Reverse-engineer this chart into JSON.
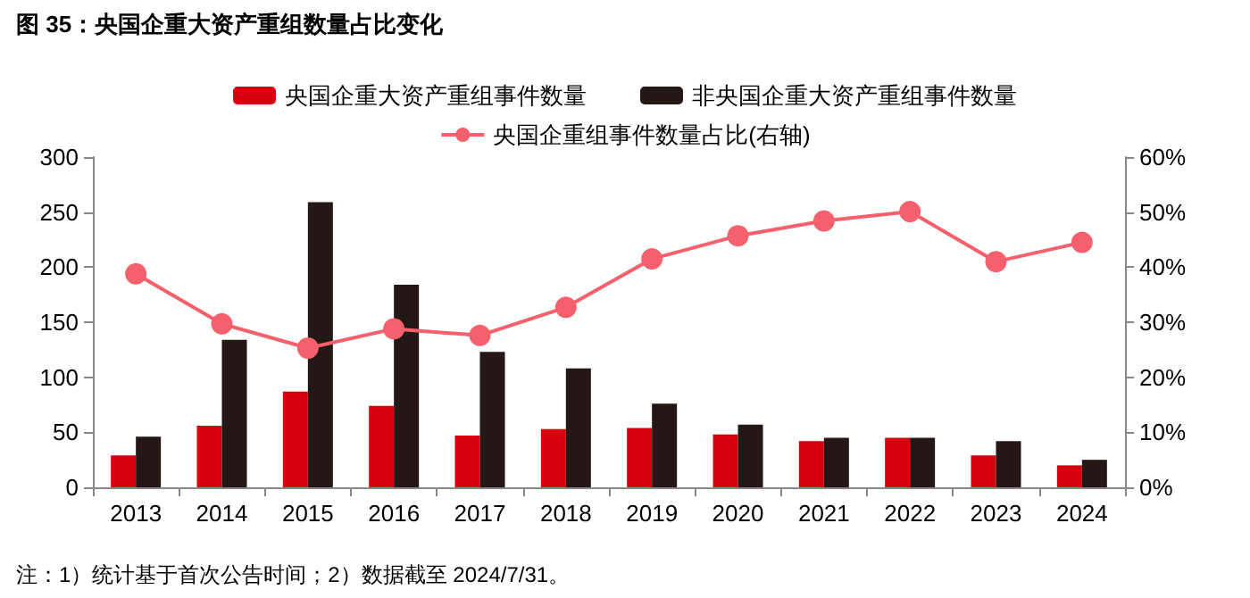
{
  "chart_data": {
    "type": "bar",
    "title": "图 35：央国企重大资产重组数量占比变化",
    "categories": [
      "2013",
      "2014",
      "2015",
      "2016",
      "2017",
      "2018",
      "2019",
      "2020",
      "2021",
      "2022",
      "2023",
      "2024"
    ],
    "series": [
      {
        "name": "央国企重大资产重组事件数量",
        "color": "#d7000f",
        "values": [
          29,
          56,
          87,
          74,
          47,
          53,
          54,
          48,
          42,
          45,
          29,
          20
        ]
      },
      {
        "name": "非央国企重大资产重组事件数量",
        "color": "#231815",
        "values": [
          46,
          134,
          259,
          184,
          123,
          108,
          76,
          57,
          45,
          45,
          42,
          25
        ]
      },
      {
        "name": "央国企重组事件数量占比(右轴)",
        "type": "line",
        "axis": "y2",
        "color": "#f4606c",
        "values": [
          38.8,
          29.7,
          25.3,
          28.8,
          27.6,
          32.7,
          41.5,
          45.7,
          48.4,
          50.1,
          41,
          44.5
        ]
      }
    ],
    "ylim": [
      0,
      300
    ],
    "yticks": [
      0,
      50,
      100,
      150,
      200,
      250,
      300
    ],
    "y2lim": [
      0,
      60
    ],
    "y2ticks": [
      {
        "value": 0,
        "label": "0%"
      },
      {
        "value": 10,
        "label": "10%"
      },
      {
        "value": 20,
        "label": "20%"
      },
      {
        "value": 30,
        "label": "30%"
      },
      {
        "value": 40,
        "label": "40%"
      },
      {
        "value": 50,
        "label": "50%"
      },
      {
        "value": 60,
        "label": "60%"
      }
    ],
    "marker": "circle",
    "grid": false,
    "legend": "top",
    "annotations": [
      "注：1）统计基于首次公告时间；2）数据截至 2024/7/31。"
    ]
  }
}
